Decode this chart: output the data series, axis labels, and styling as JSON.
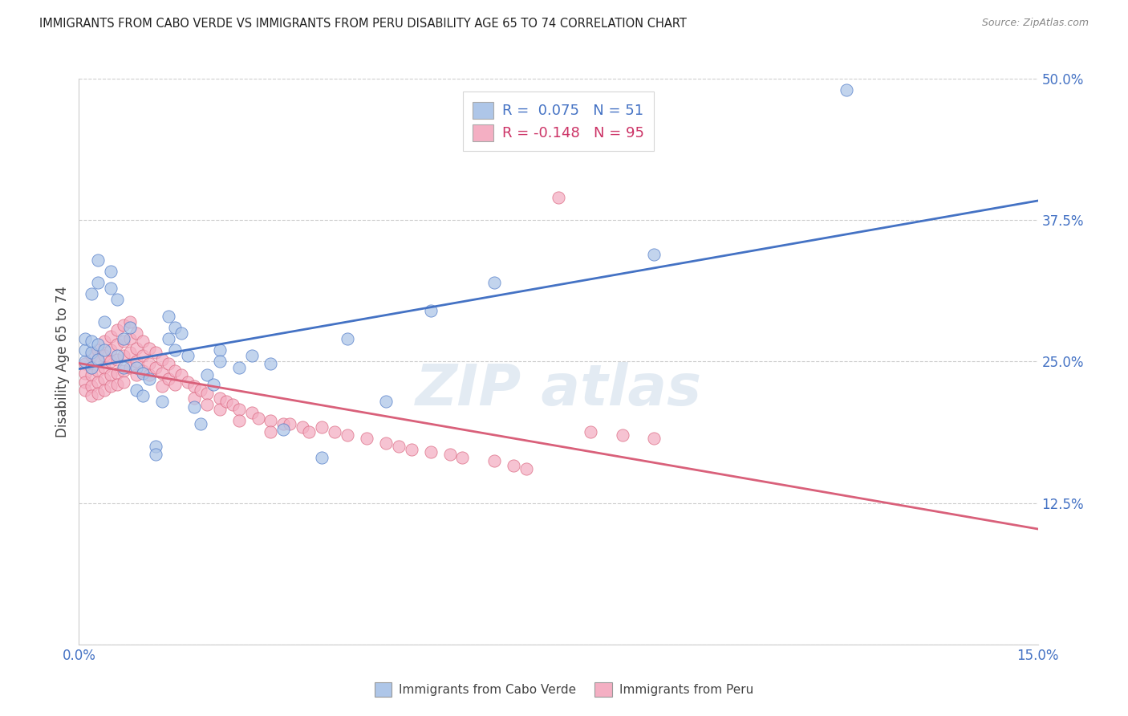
{
  "title": "IMMIGRANTS FROM CABO VERDE VS IMMIGRANTS FROM PERU DISABILITY AGE 65 TO 74 CORRELATION CHART",
  "source": "Source: ZipAtlas.com",
  "ylabel": "Disability Age 65 to 74",
  "x_min": 0.0,
  "x_max": 0.15,
  "y_min": 0.0,
  "y_max": 0.5,
  "x_ticks": [
    0.0,
    0.03,
    0.06,
    0.09,
    0.12,
    0.15
  ],
  "y_ticks_right": [
    0.0,
    0.125,
    0.25,
    0.375,
    0.5
  ],
  "cabo_verde_color": "#aec6e8",
  "peru_color": "#f4afc3",
  "cabo_verde_line_color": "#4472c4",
  "peru_line_color": "#d9607a",
  "cabo_verde_R": 0.075,
  "cabo_verde_N": 51,
  "peru_R": -0.148,
  "peru_N": 95,
  "cabo_verde_scatter": [
    [
      0.001,
      0.25
    ],
    [
      0.001,
      0.26
    ],
    [
      0.001,
      0.27
    ],
    [
      0.002,
      0.245
    ],
    [
      0.002,
      0.258
    ],
    [
      0.002,
      0.268
    ],
    [
      0.002,
      0.31
    ],
    [
      0.003,
      0.252
    ],
    [
      0.003,
      0.265
    ],
    [
      0.003,
      0.32
    ],
    [
      0.003,
      0.34
    ],
    [
      0.004,
      0.26
    ],
    [
      0.004,
      0.285
    ],
    [
      0.005,
      0.33
    ],
    [
      0.005,
      0.315
    ],
    [
      0.006,
      0.305
    ],
    [
      0.006,
      0.255
    ],
    [
      0.007,
      0.27
    ],
    [
      0.007,
      0.245
    ],
    [
      0.008,
      0.28
    ],
    [
      0.009,
      0.245
    ],
    [
      0.009,
      0.225
    ],
    [
      0.01,
      0.24
    ],
    [
      0.01,
      0.22
    ],
    [
      0.011,
      0.235
    ],
    [
      0.012,
      0.175
    ],
    [
      0.012,
      0.168
    ],
    [
      0.013,
      0.215
    ],
    [
      0.014,
      0.29
    ],
    [
      0.014,
      0.27
    ],
    [
      0.015,
      0.28
    ],
    [
      0.015,
      0.26
    ],
    [
      0.016,
      0.275
    ],
    [
      0.017,
      0.255
    ],
    [
      0.018,
      0.21
    ],
    [
      0.019,
      0.195
    ],
    [
      0.02,
      0.238
    ],
    [
      0.021,
      0.23
    ],
    [
      0.022,
      0.26
    ],
    [
      0.022,
      0.25
    ],
    [
      0.025,
      0.245
    ],
    [
      0.027,
      0.255
    ],
    [
      0.03,
      0.248
    ],
    [
      0.032,
      0.19
    ],
    [
      0.038,
      0.165
    ],
    [
      0.042,
      0.27
    ],
    [
      0.048,
      0.215
    ],
    [
      0.055,
      0.295
    ],
    [
      0.065,
      0.32
    ],
    [
      0.09,
      0.345
    ],
    [
      0.12,
      0.49
    ]
  ],
  "peru_scatter": [
    [
      0.001,
      0.248
    ],
    [
      0.001,
      0.24
    ],
    [
      0.001,
      0.232
    ],
    [
      0.001,
      0.225
    ],
    [
      0.002,
      0.255
    ],
    [
      0.002,
      0.245
    ],
    [
      0.002,
      0.238
    ],
    [
      0.002,
      0.228
    ],
    [
      0.002,
      0.22
    ],
    [
      0.003,
      0.26
    ],
    [
      0.003,
      0.25
    ],
    [
      0.003,
      0.242
    ],
    [
      0.003,
      0.232
    ],
    [
      0.003,
      0.222
    ],
    [
      0.004,
      0.268
    ],
    [
      0.004,
      0.255
    ],
    [
      0.004,
      0.245
    ],
    [
      0.004,
      0.235
    ],
    [
      0.004,
      0.225
    ],
    [
      0.005,
      0.272
    ],
    [
      0.005,
      0.26
    ],
    [
      0.005,
      0.25
    ],
    [
      0.005,
      0.238
    ],
    [
      0.005,
      0.228
    ],
    [
      0.006,
      0.278
    ],
    [
      0.006,
      0.265
    ],
    [
      0.006,
      0.252
    ],
    [
      0.006,
      0.24
    ],
    [
      0.006,
      0.23
    ],
    [
      0.007,
      0.282
    ],
    [
      0.007,
      0.268
    ],
    [
      0.007,
      0.255
    ],
    [
      0.007,
      0.242
    ],
    [
      0.007,
      0.232
    ],
    [
      0.008,
      0.285
    ],
    [
      0.008,
      0.27
    ],
    [
      0.008,
      0.258
    ],
    [
      0.008,
      0.245
    ],
    [
      0.009,
      0.275
    ],
    [
      0.009,
      0.262
    ],
    [
      0.009,
      0.25
    ],
    [
      0.009,
      0.238
    ],
    [
      0.01,
      0.268
    ],
    [
      0.01,
      0.255
    ],
    [
      0.01,
      0.242
    ],
    [
      0.011,
      0.262
    ],
    [
      0.011,
      0.248
    ],
    [
      0.011,
      0.238
    ],
    [
      0.012,
      0.258
    ],
    [
      0.012,
      0.245
    ],
    [
      0.013,
      0.252
    ],
    [
      0.013,
      0.24
    ],
    [
      0.013,
      0.228
    ],
    [
      0.014,
      0.248
    ],
    [
      0.014,
      0.235
    ],
    [
      0.015,
      0.242
    ],
    [
      0.015,
      0.23
    ],
    [
      0.016,
      0.238
    ],
    [
      0.017,
      0.232
    ],
    [
      0.018,
      0.228
    ],
    [
      0.018,
      0.218
    ],
    [
      0.019,
      0.225
    ],
    [
      0.02,
      0.222
    ],
    [
      0.02,
      0.212
    ],
    [
      0.022,
      0.218
    ],
    [
      0.022,
      0.208
    ],
    [
      0.023,
      0.215
    ],
    [
      0.024,
      0.212
    ],
    [
      0.025,
      0.208
    ],
    [
      0.025,
      0.198
    ],
    [
      0.027,
      0.205
    ],
    [
      0.028,
      0.2
    ],
    [
      0.03,
      0.198
    ],
    [
      0.03,
      0.188
    ],
    [
      0.032,
      0.195
    ],
    [
      0.033,
      0.195
    ],
    [
      0.035,
      0.192
    ],
    [
      0.036,
      0.188
    ],
    [
      0.038,
      0.192
    ],
    [
      0.04,
      0.188
    ],
    [
      0.042,
      0.185
    ],
    [
      0.045,
      0.182
    ],
    [
      0.048,
      0.178
    ],
    [
      0.05,
      0.175
    ],
    [
      0.052,
      0.172
    ],
    [
      0.055,
      0.17
    ],
    [
      0.058,
      0.168
    ],
    [
      0.06,
      0.165
    ],
    [
      0.065,
      0.162
    ],
    [
      0.068,
      0.158
    ],
    [
      0.07,
      0.155
    ],
    [
      0.075,
      0.395
    ],
    [
      0.08,
      0.188
    ],
    [
      0.085,
      0.185
    ],
    [
      0.09,
      0.182
    ]
  ],
  "background_color": "#ffffff",
  "grid_color": "#cccccc",
  "title_color": "#222222",
  "label_color": "#444444",
  "tick_color_blue": "#4472c4",
  "legend_R_color_blue": "#4472c4",
  "legend_R_color_pink": "#cc3366"
}
